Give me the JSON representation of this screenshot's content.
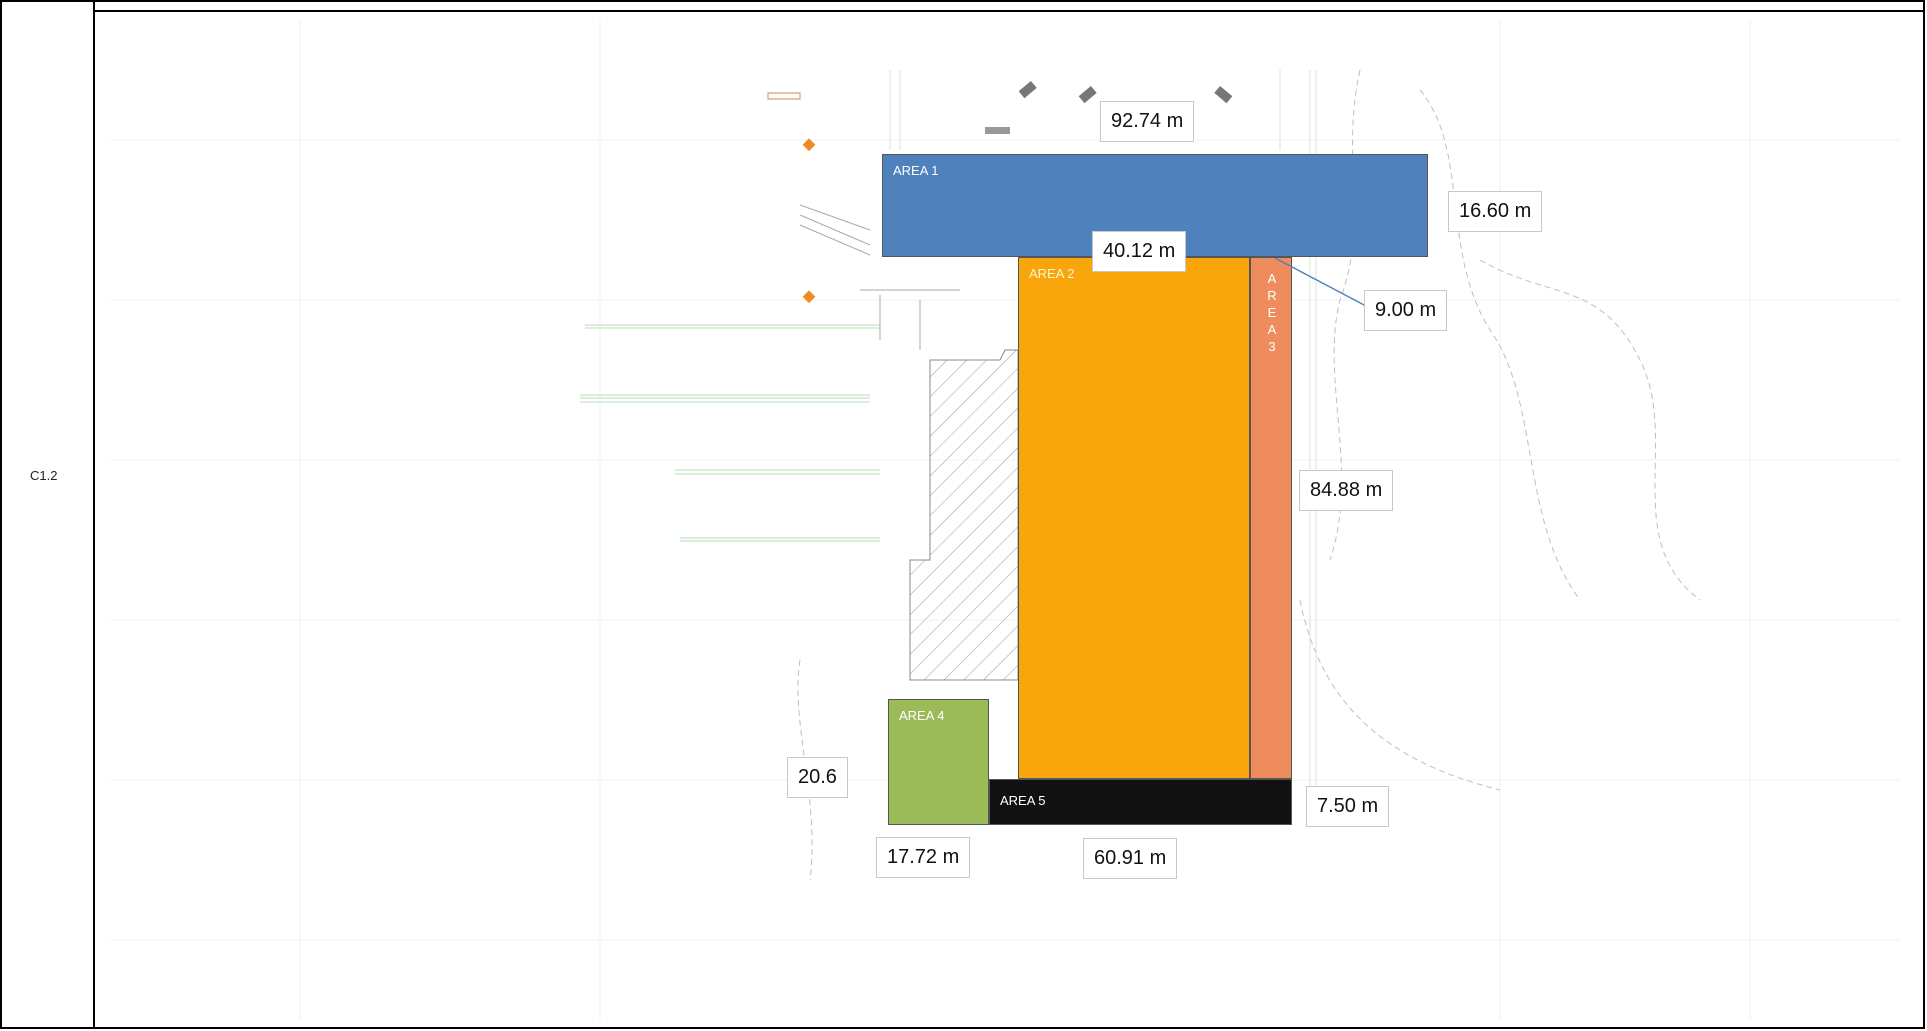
{
  "row_label": "C1.2",
  "areas": {
    "area1": {
      "label": "AREA 1",
      "color": "#4f81bd"
    },
    "area2": {
      "label": "AREA 2",
      "color": "#f9a50c"
    },
    "area3": {
      "label": "A\nR\nE\nA\n3",
      "color": "#ef8c5e"
    },
    "area4": {
      "label": "AREA 4",
      "color": "#9bbb59"
    },
    "area5": {
      "label": "AREA 5",
      "color": "#111111"
    }
  },
  "dimensions": {
    "top_length": "92.74 m",
    "area1_width": "16.60 m",
    "area2_width": "40.12 m",
    "area3_width": "9.00 m",
    "right_length": "84.88 m",
    "area4_height": "20.6",
    "area5_height": "7.50 m",
    "area4_width": "17.72 m",
    "area5_length": "60.91 m"
  }
}
